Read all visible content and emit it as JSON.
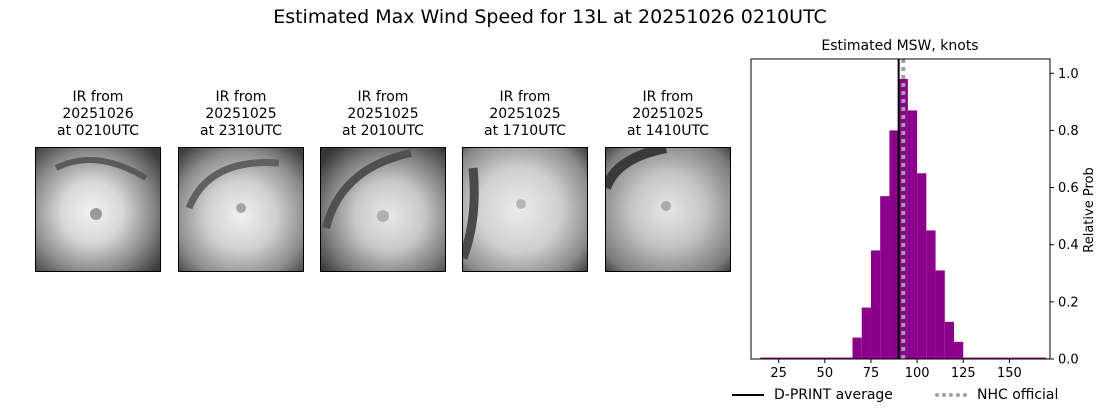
{
  "title": "Estimated Max Wind Speed for 13L at 20251026 0210UTC",
  "ir_panels": [
    {
      "title": "IR from\n20251026\nat 0210UTC"
    },
    {
      "title": "IR from\n20251025\nat 2310UTC"
    },
    {
      "title": "IR from\n20251025\nat 2010UTC"
    },
    {
      "title": "IR from\n20251025\nat 1710UTC"
    },
    {
      "title": "IR from\n20251025\nat 1410UTC"
    }
  ],
  "chart_data": {
    "type": "bar",
    "title": "Estimated MSW, knots",
    "xlabel": "",
    "ylabel": "Relative Prob",
    "xlim": [
      10,
      172
    ],
    "ylim": [
      0,
      1.05
    ],
    "xticks": [
      25,
      50,
      75,
      100,
      125,
      150
    ],
    "yticks": [
      0.0,
      0.2,
      0.4,
      0.6,
      0.8,
      1.0
    ],
    "yaxis_side": "right",
    "bar_color": "#8b008b",
    "bin_width": 5,
    "bins": [
      {
        "x": 15,
        "value": 0.005
      },
      {
        "x": 20,
        "value": 0.005
      },
      {
        "x": 25,
        "value": 0.005
      },
      {
        "x": 30,
        "value": 0.005
      },
      {
        "x": 35,
        "value": 0.005
      },
      {
        "x": 40,
        "value": 0.005
      },
      {
        "x": 45,
        "value": 0.005
      },
      {
        "x": 50,
        "value": 0.005
      },
      {
        "x": 55,
        "value": 0.005
      },
      {
        "x": 60,
        "value": 0.005
      },
      {
        "x": 65,
        "value": 0.075
      },
      {
        "x": 70,
        "value": 0.18
      },
      {
        "x": 75,
        "value": 0.38
      },
      {
        "x": 80,
        "value": 0.57
      },
      {
        "x": 85,
        "value": 0.8
      },
      {
        "x": 90,
        "value": 0.98
      },
      {
        "x": 95,
        "value": 0.87
      },
      {
        "x": 100,
        "value": 0.65
      },
      {
        "x": 105,
        "value": 0.45
      },
      {
        "x": 110,
        "value": 0.31
      },
      {
        "x": 115,
        "value": 0.13
      },
      {
        "x": 120,
        "value": 0.06
      },
      {
        "x": 125,
        "value": 0.005
      },
      {
        "x": 130,
        "value": 0.005
      },
      {
        "x": 135,
        "value": 0.005
      },
      {
        "x": 140,
        "value": 0.005
      },
      {
        "x": 145,
        "value": 0.005
      },
      {
        "x": 150,
        "value": 0.005
      },
      {
        "x": 155,
        "value": 0.005
      },
      {
        "x": 160,
        "value": 0.005
      },
      {
        "x": 165,
        "value": 0.005
      }
    ],
    "vlines": [
      {
        "name": "D-PRINT average",
        "x": 90,
        "style": "solid",
        "color": "#000000"
      },
      {
        "name": "NHC official",
        "x": 92.5,
        "style": "dotted",
        "color": "#a0a0a0"
      }
    ],
    "legend_position": "bottom"
  }
}
